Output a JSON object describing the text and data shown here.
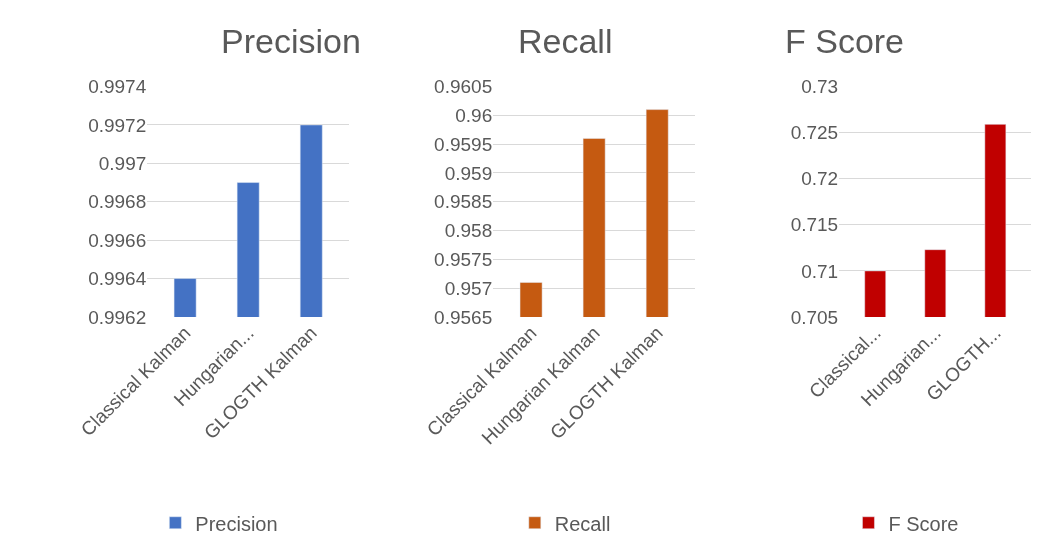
{
  "chart_data": [
    {
      "type": "bar",
      "title": "Precision",
      "categories": [
        "Classical Kalman",
        "Hungarian...",
        "GLOGTH Kalman"
      ],
      "series": [
        {
          "name": "Precision",
          "color": "#4472c4",
          "values": [
            0.9964,
            0.9969,
            0.9972
          ]
        }
      ],
      "ylim": [
        0.9962,
        0.9974
      ],
      "yticks": [
        0.9962,
        0.9964,
        0.9966,
        0.9968,
        0.997,
        0.9972,
        0.9974
      ],
      "grid": "y",
      "legend": "bottom"
    },
    {
      "type": "bar",
      "title": "Recall",
      "categories": [
        "Classical Kalman",
        "Hungarian Kalman",
        "GLOGTH Kalman"
      ],
      "series": [
        {
          "name": "Recall",
          "color": "#c55a11",
          "values": [
            0.9571,
            0.9596,
            0.9601
          ]
        }
      ],
      "ylim": [
        0.9565,
        0.9605
      ],
      "yticks": [
        0.9565,
        0.957,
        0.9575,
        0.958,
        0.9585,
        0.959,
        0.9595,
        0.96,
        0.9605
      ],
      "grid": "y",
      "legend": "bottom"
    },
    {
      "type": "bar",
      "title": "F Score",
      "categories": [
        "Classical...",
        "Hungarian...",
        "GLOGTH..."
      ],
      "series": [
        {
          "name": "F Score",
          "color": "#c00000",
          "values": [
            0.71,
            0.7123,
            0.7259
          ]
        }
      ],
      "ylim": [
        0.705,
        0.73
      ],
      "yticks": [
        0.705,
        0.71,
        0.715,
        0.72,
        0.725,
        0.73
      ],
      "grid": "y",
      "legend": "bottom"
    }
  ]
}
